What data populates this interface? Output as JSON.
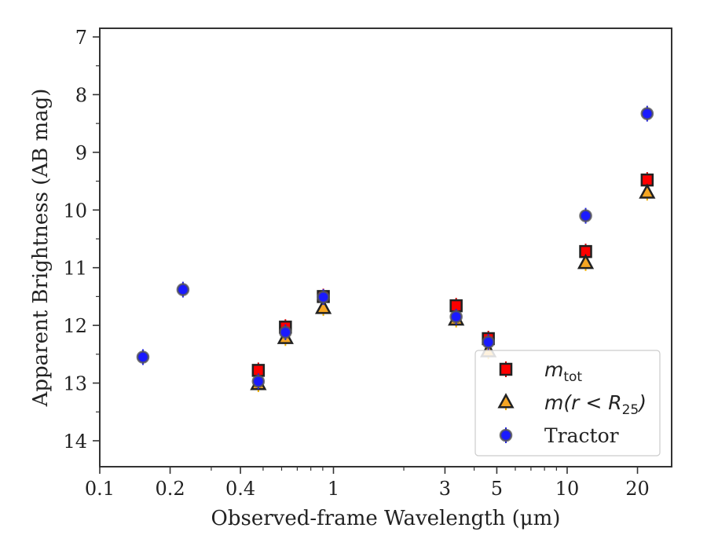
{
  "chart_data": {
    "type": "scatter",
    "xlabel": "Observed-frame Wavelength (μm)",
    "ylabel": "Apparent Brightness (AB mag)",
    "x_scale": "log",
    "xlim": [
      0.1,
      28
    ],
    "ylim": [
      14.45,
      6.85
    ],
    "y_inverted": true,
    "x_ticks": [
      0.1,
      0.2,
      0.4,
      1,
      3,
      5,
      10,
      20
    ],
    "x_tick_labels": [
      "0.1",
      "0.2",
      "0.4",
      "1",
      "3",
      "5",
      "10",
      "20"
    ],
    "y_ticks": [
      7,
      8,
      9,
      10,
      11,
      12,
      13,
      14
    ],
    "y_tick_labels": [
      "7",
      "8",
      "9",
      "10",
      "11",
      "12",
      "13",
      "14"
    ],
    "grid": false,
    "legend_position": "lower-right",
    "series": [
      {
        "name": "m_tot",
        "legend_main": "m",
        "legend_sub": "tot",
        "marker": "square",
        "color": "#ff0000",
        "error_color": "#cc0000",
        "x": [
          0.477,
          0.623,
          0.905,
          3.35,
          4.6,
          12.0,
          22.0
        ],
        "y": [
          12.78,
          12.03,
          11.5,
          11.66,
          12.23,
          10.72,
          9.48
        ]
      },
      {
        "name": "m(r < R25)",
        "legend_main": "m(r < R",
        "legend_sub": "25",
        "legend_tail": ")",
        "marker": "triangle",
        "color": "#f5a623",
        "error_color": "#f0b000",
        "x": [
          0.477,
          0.623,
          0.905,
          3.35,
          4.6,
          12.0,
          22.0
        ],
        "y": [
          13.02,
          12.22,
          11.7,
          11.9,
          12.45,
          10.92,
          9.7
        ]
      },
      {
        "name": "Tractor",
        "marker": "circle",
        "color": "#1a1aff",
        "error_color": "#2222dd",
        "x": [
          0.153,
          0.227,
          0.477,
          0.623,
          0.905,
          3.35,
          4.6,
          12.0,
          22.0
        ],
        "y": [
          12.55,
          11.38,
          12.97,
          12.12,
          11.51,
          11.85,
          12.29,
          10.1,
          8.33
        ]
      }
    ]
  }
}
